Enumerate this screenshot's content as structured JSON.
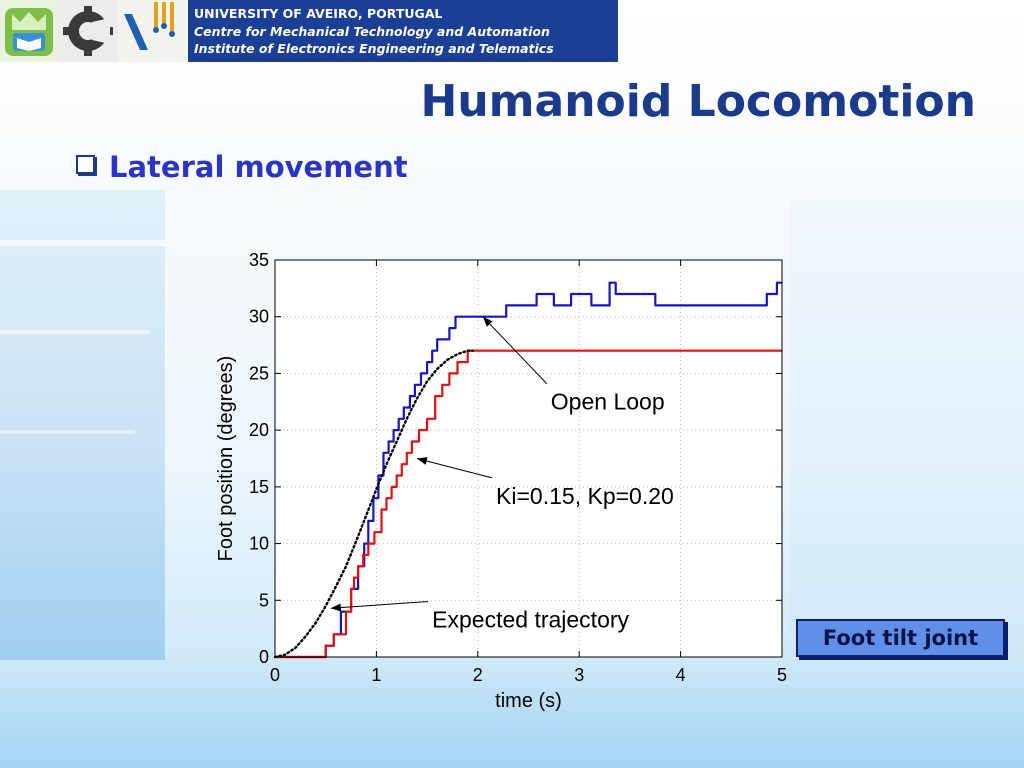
{
  "header": {
    "university": "UNIVERSITY OF AVEIRO, PORTUGAL",
    "centre": "Centre for Mechanical Technology and Automation",
    "institute": "Institute of Electronics Engineering and Telematics"
  },
  "page_title": "Humanoid Locomotion",
  "bullet": "Lateral movement",
  "tag": "Foot tilt joint",
  "chart_data": {
    "type": "line",
    "xlabel": "time (s)",
    "ylabel": "Foot position (degrees)",
    "xlim": [
      0,
      5
    ],
    "ylim": [
      0,
      35
    ],
    "xticks": [
      0,
      1,
      2,
      3,
      4,
      5
    ],
    "yticks": [
      0,
      5,
      10,
      15,
      20,
      25,
      30,
      35
    ],
    "grid": true,
    "series": [
      {
        "color": "#1515c8",
        "style": "solid",
        "x": [
          0,
          0.5,
          0.5,
          0.58,
          0.58,
          0.65,
          0.65,
          0.75,
          0.75,
          0.82,
          0.82,
          0.88,
          0.88,
          0.92,
          0.92,
          0.97,
          0.97,
          1.02,
          1.02,
          1.07,
          1.07,
          1.12,
          1.12,
          1.17,
          1.17,
          1.22,
          1.22,
          1.27,
          1.27,
          1.33,
          1.33,
          1.38,
          1.38,
          1.44,
          1.44,
          1.5,
          1.5,
          1.55,
          1.55,
          1.6,
          1.6,
          1.65,
          1.65,
          1.72,
          1.72,
          1.78,
          1.78,
          1.88,
          1.88,
          1.95,
          1.95,
          2.28,
          2.28,
          2.58,
          2.58,
          2.75,
          2.75,
          2.92,
          2.92,
          3.12,
          3.12,
          3.2,
          3.2,
          3.3,
          3.3,
          3.36,
          3.36,
          3.75,
          3.75,
          4.85,
          4.85,
          4.95,
          4.95,
          5.0
        ],
        "y": [
          0,
          0,
          1,
          1,
          2,
          2,
          4,
          4,
          6,
          6,
          8,
          8,
          10,
          10,
          12,
          12,
          14,
          14,
          16,
          16,
          18,
          18,
          19,
          19,
          20,
          20,
          21,
          21,
          22,
          22,
          23,
          23,
          24,
          24,
          25,
          25,
          26,
          26,
          27,
          27,
          28,
          28,
          28,
          28,
          29,
          29,
          30,
          30,
          30,
          30,
          30,
          30,
          31,
          31,
          32,
          32,
          31,
          31,
          32,
          32,
          31,
          31,
          31,
          31,
          33,
          33,
          32,
          32,
          31,
          31,
          32,
          32,
          33,
          33
        ]
      },
      {
        "color": "#e01010",
        "style": "solid",
        "x": [
          0,
          0.5,
          0.5,
          0.58,
          0.58,
          0.7,
          0.7,
          0.75,
          0.75,
          0.78,
          0.78,
          0.82,
          0.82,
          0.87,
          0.87,
          0.92,
          0.92,
          0.98,
          0.98,
          1.05,
          1.05,
          1.1,
          1.1,
          1.15,
          1.15,
          1.2,
          1.2,
          1.25,
          1.25,
          1.3,
          1.3,
          1.35,
          1.35,
          1.42,
          1.42,
          1.5,
          1.5,
          1.58,
          1.58,
          1.65,
          1.65,
          1.72,
          1.72,
          1.8,
          1.8,
          1.9,
          1.9,
          1.95,
          1.95,
          5.0
        ],
        "y": [
          0,
          0,
          1,
          1,
          2,
          2,
          4,
          4,
          6,
          6,
          7,
          7,
          8,
          8,
          9,
          9,
          10,
          10,
          11,
          11,
          13,
          13,
          14,
          14,
          15,
          15,
          16,
          16,
          17,
          17,
          18,
          18,
          19,
          19,
          20,
          20,
          21,
          21,
          23,
          23,
          24,
          24,
          25,
          25,
          26,
          26,
          27,
          27,
          27,
          27
        ]
      },
      {
        "color": "#000000",
        "style": "dotted",
        "x": [
          0,
          0.1,
          0.2,
          0.3,
          0.4,
          0.5,
          0.6,
          0.7,
          0.8,
          0.9,
          1.0,
          1.1,
          1.2,
          1.3,
          1.4,
          1.5,
          1.6,
          1.7,
          1.8,
          1.9,
          1.95
        ],
        "y": [
          0,
          0.2,
          0.8,
          1.8,
          3.0,
          4.5,
          6.2,
          8.0,
          10.2,
          12.5,
          14.8,
          17.0,
          19.0,
          21.0,
          22.8,
          24.3,
          25.4,
          26.2,
          26.7,
          27.0,
          27.0
        ]
      }
    ],
    "annotations": [
      {
        "text": "Open Loop",
        "x": 2.72,
        "y": 21.8,
        "arrow_to": [
          2.05,
          30.0
        ]
      },
      {
        "text": "Ki=0.15, Kp=0.20",
        "x": 2.18,
        "y": 13.5,
        "arrow_to": [
          1.4,
          17.5
        ]
      },
      {
        "text": "Expected trajectory",
        "x": 1.55,
        "y": 2.6,
        "arrow_to": [
          0.55,
          4.3
        ]
      }
    ]
  }
}
